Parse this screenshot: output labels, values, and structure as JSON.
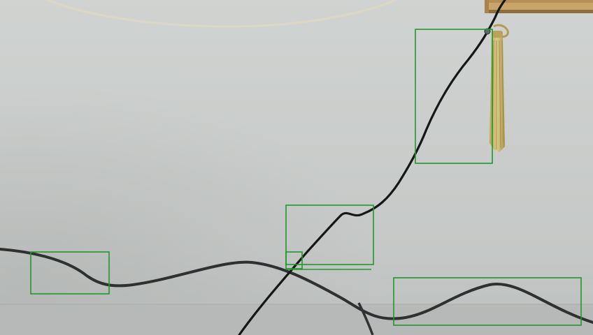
{
  "detections": {
    "box_color": "#1f9a2a",
    "count": 6
  },
  "colors": {
    "wall_top": "#ced1cf",
    "wall_bottom": "#bec1bf",
    "floor": "#b4b7b5",
    "white_cable": "#ddd8c6",
    "dark_cable": "#2c2e2f",
    "black_cable": "#141516",
    "wood_shelf": "#caa46a",
    "tassel": "#c9b86a"
  }
}
